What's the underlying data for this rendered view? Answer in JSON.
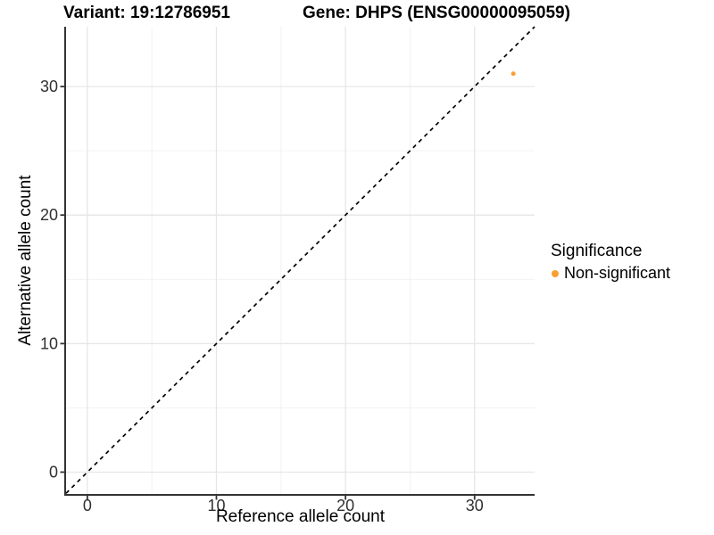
{
  "titles": {
    "left": "Variant: 19:12786951",
    "right": "Gene: DHPS (ENSG00000095059)"
  },
  "chart_data": {
    "type": "scatter",
    "xlabel": "Reference allele count",
    "ylabel": "Alternative allele count",
    "xticks": [
      0,
      10,
      20,
      30
    ],
    "yticks": [
      0,
      10,
      20,
      30
    ],
    "xlim": [
      -1.65,
      34.65
    ],
    "ylim": [
      -1.7,
      34.65
    ],
    "grid": "major+minor",
    "points": [
      {
        "x": 33,
        "y": 31,
        "significance": "Non-significant"
      }
    ],
    "point_color": "#F9A032",
    "reference_line": {
      "style": "dashed",
      "slope": 1,
      "intercept": 0,
      "color": "#000000"
    },
    "legend": {
      "title": "Significance",
      "position": "right",
      "entries": [
        {
          "label": "Non-significant",
          "color": "#F9A032"
        }
      ]
    }
  },
  "colors": {
    "background": "#ffffff",
    "axis_line": "#333333",
    "tick_text": "#303030",
    "grid_major": "#E6E6E6",
    "grid_minor": "#F0F0F0"
  }
}
